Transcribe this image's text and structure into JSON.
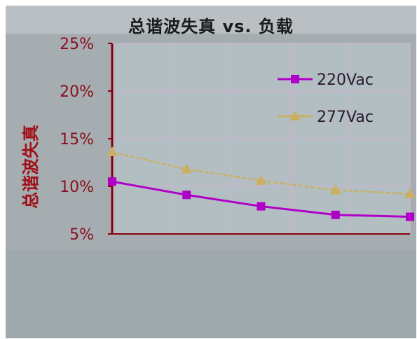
{
  "chart_data": {
    "type": "line",
    "title": "总谐波失真 vs. 负载",
    "ylabel": "总谐波失真",
    "xlabel": "",
    "ylim": [
      5,
      25
    ],
    "yticks": [
      "25%",
      "20%",
      "15%",
      "10%",
      "5%"
    ],
    "ytick_values": [
      25,
      20,
      15,
      10,
      5
    ],
    "x": [
      1,
      2,
      3,
      4,
      5
    ],
    "xlim": [
      1,
      5
    ],
    "grid": true,
    "legend_position": "top-right",
    "series": [
      {
        "name": "220Vac",
        "marker": "square",
        "color": "#b000c8",
        "values": [
          10.5,
          9.1,
          7.9,
          7.0,
          6.8
        ]
      },
      {
        "name": "277Vac",
        "marker": "triangle",
        "color": "#c8b060",
        "values": [
          13.6,
          11.8,
          10.6,
          9.6,
          9.2
        ]
      }
    ]
  },
  "colors": {
    "axis": "#8a0010",
    "ylabel": "#a01018",
    "tick": "#8a1020",
    "grid": "#c9b4cf"
  }
}
